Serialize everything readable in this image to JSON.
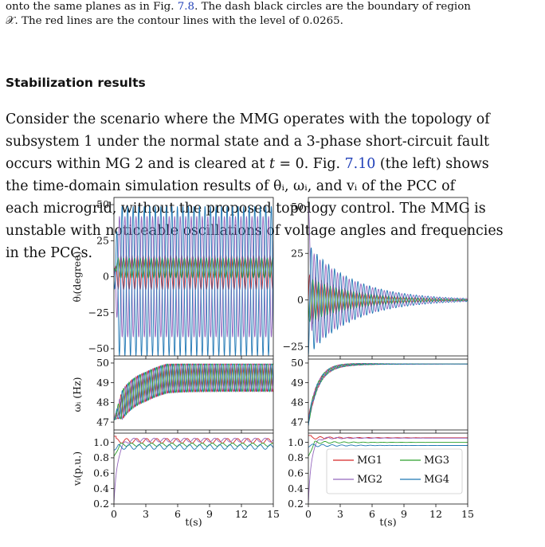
{
  "caption": {
    "line1_a": "onto the same planes as in Fig. ",
    "line1_link": "7.8",
    "line1_b": ". The dash black circles are the boundary of region",
    "line2": "𝒳. The red lines are the contour lines with the level of 0.0265."
  },
  "section": {
    "heading": "Stabilization results"
  },
  "paragraph": {
    "lines": [
      "Consider the scenario where the MMG operates with the topology of",
      "subsystem 1 under the normal state and a 3-phase short-circuit fault",
      "occurs within MG 2 and is cleared at t = 0. Fig. 7.10 (the left) shows",
      "the time-domain simulation results of θᵢ, ωᵢ, and vᵢ of the PCC of",
      "each microgrid, without the proposed topology control. The MMG is",
      "unstable with noticeable oscillations of voltage angles and frequencies",
      "in the PCCs."
    ],
    "link_text": "7.10"
  },
  "figure": {
    "row_labels": [
      "θᵢ(degree)",
      "ωᵢ (Hz)",
      "vᵢ(p.u.)"
    ],
    "x_label": "t(s)",
    "x_ticks": [
      "0",
      "3",
      "6",
      "9",
      "12",
      "15"
    ],
    "colors": {
      "MG1": "#d62728",
      "MG2": "#9467bd",
      "MG3": "#2ca02c",
      "MG4": "#1f77b4"
    }
  },
  "chart_data": [
    {
      "type": "line",
      "title": "",
      "xlabel": "",
      "ylabel": "θᵢ(degree)",
      "xlim": [
        0,
        15
      ],
      "ylim": [
        -55,
        55
      ],
      "yticks": [
        -50,
        -25,
        0,
        25,
        50
      ],
      "series": [
        {
          "values": "sustained oscillation, period ~0.5 s, amplitude ~10",
          "color": "#d62728"
        },
        {
          "values": "sustained oscillation, amplitude ~40",
          "color": "#9467bd"
        },
        {
          "values": "small oscillation around 5",
          "color": "#2ca02c"
        },
        {
          "values": "sustained oscillation, amplitude ~50",
          "color": "#1f77b4"
        }
      ]
    },
    {
      "type": "line",
      "title": "",
      "xlabel": "",
      "ylabel": "",
      "xlim": [
        0,
        15
      ],
      "ylim": [
        -30,
        55
      ],
      "yticks": [
        -25,
        0,
        25,
        50
      ],
      "series": [
        {
          "values": "damped oscillation decaying to 0",
          "color": "#d62728"
        },
        {
          "values": "initial peak ~50 then damped oscillation to 0",
          "color": "#9467bd"
        },
        {
          "values": "damped oscillation to 0",
          "color": "#2ca02c"
        },
        {
          "values": "damped oscillation decaying to 0",
          "color": "#1f77b4"
        }
      ]
    },
    {
      "type": "line",
      "title": "",
      "xlabel": "",
      "ylabel": "ωᵢ (Hz)",
      "xlim": [
        0,
        15
      ],
      "ylim": [
        46.6,
        50.2
      ],
      "yticks": [
        47,
        48,
        49,
        50
      ],
      "series": [
        {
          "values": "rises from ~47 to oscillate between 48 and 50",
          "color": "#d62728"
        },
        {
          "values": "rises from ~47 to oscillate between 48 and 50",
          "color": "#9467bd"
        },
        {
          "values": "rises from ~47 to oscillate between 48 and 50",
          "color": "#2ca02c"
        },
        {
          "values": "rises from ~47 to oscillate between 48 and 50",
          "color": "#1f77b4"
        }
      ]
    },
    {
      "type": "line",
      "title": "",
      "xlabel": "",
      "ylabel": "",
      "xlim": [
        0,
        15
      ],
      "ylim": [
        46.6,
        50.2
      ],
      "yticks": [
        47,
        48,
        49,
        50
      ],
      "series": [
        {
          "values": "rises from ~47 to settle at 50",
          "color": "#d62728"
        },
        {
          "values": "rises from ~47 to settle at 50",
          "color": "#9467bd"
        },
        {
          "values": "rises from ~47 to settle at 50",
          "color": "#2ca02c"
        },
        {
          "values": "rises from ~47 to settle at 50",
          "color": "#1f77b4"
        }
      ]
    },
    {
      "type": "line",
      "title": "",
      "xlabel": "t(s)",
      "ylabel": "vᵢ(p.u.)",
      "xlim": [
        0,
        15
      ],
      "ylim": [
        0.2,
        1.12
      ],
      "yticks": [
        0.2,
        0.4,
        0.6,
        0.8,
        1.0
      ],
      "series": [
        {
          "values": "oscillates ~1.0–1.05",
          "color": "#d62728"
        },
        {
          "values": "rises from 0.2 then oscillates ~1.0–1.05",
          "color": "#9467bd"
        },
        {
          "values": "oscillates ~0.95–1.0",
          "color": "#2ca02c"
        },
        {
          "values": "oscillates ~0.9–0.97",
          "color": "#1f77b4"
        }
      ]
    },
    {
      "type": "line",
      "title": "",
      "xlabel": "t(s)",
      "ylabel": "",
      "xlim": [
        0,
        15
      ],
      "ylim": [
        0.2,
        1.12
      ],
      "yticks": [
        0.2,
        0.4,
        0.6,
        0.8,
        1.0
      ],
      "legend": [
        "MG1",
        "MG3",
        "MG2",
        "MG4"
      ],
      "legend_position": "lower-right",
      "series": [
        {
          "name": "MG1",
          "values": "settles ~1.06",
          "color": "#d62728"
        },
        {
          "name": "MG2",
          "values": "rises from 0.2, settles ~1.06",
          "color": "#9467bd"
        },
        {
          "name": "MG3",
          "values": "settles ~1.0",
          "color": "#2ca02c"
        },
        {
          "name": "MG4",
          "values": "settles ~0.96",
          "color": "#1f77b4"
        }
      ]
    }
  ]
}
